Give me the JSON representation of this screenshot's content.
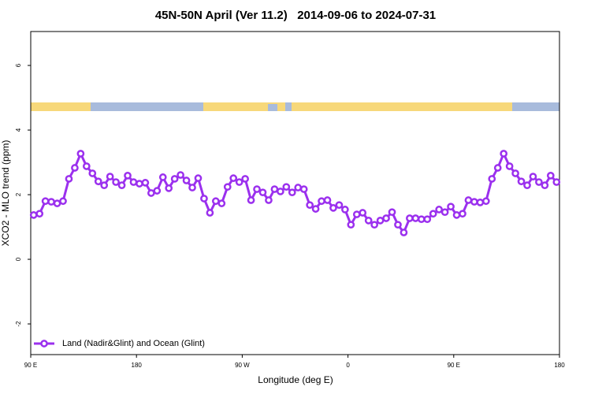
{
  "chart_data": {
    "type": "line",
    "title": "45N-50N April (Ver 11.2)   2014-09-06 to 2024-07-31",
    "x_label": "Longitude (deg E)",
    "y_label": "XCO2 - MLO trend (ppm)",
    "xlim": [
      90,
      540
    ],
    "xticks": [
      {
        "value": 90,
        "label": "90 E"
      },
      180,
      {
        "value": 270,
        "label": "90 W"
      },
      {
        "value": 360,
        "label": "0"
      },
      {
        "value": 450,
        "label": "90 E"
      },
      {
        "value": 540,
        "label": "180"
      }
    ],
    "ylim": [
      -2.95,
      7.05
    ],
    "yticks": [
      -2,
      0,
      2,
      4,
      6
    ],
    "legend": "bottom-left",
    "x": [
      92.5,
      97.5,
      102.5,
      107.5,
      112.5,
      117.5,
      122.5,
      127.5,
      132.5,
      137.5,
      142.5,
      147.5,
      152.5,
      157.5,
      162.5,
      167.5,
      172.5,
      177.5,
      182.5,
      187.5,
      192.5,
      197.5,
      202.5,
      207.5,
      212.5,
      217.5,
      222.5,
      227.5,
      232.5,
      237.5,
      242.5,
      247.5,
      252.5,
      257.5,
      262.5,
      267.5,
      272.5,
      277.5,
      282.5,
      287.5,
      292.5,
      297.5,
      302.5,
      307.5,
      312.5,
      317.5,
      322.5,
      327.5,
      332.5,
      337.5,
      342.5,
      347.5,
      352.5,
      357.5,
      362.5,
      367.5,
      372.5,
      377.5,
      382.5,
      387.5,
      392.5,
      397.5,
      402.5,
      407.5,
      412.5,
      417.5,
      422.5,
      427.5,
      432.5,
      437.5,
      442.5,
      447.5,
      452.5,
      457.5,
      462.5,
      467.5,
      472.5,
      477.5,
      482.5,
      487.5,
      492.5,
      497.5,
      502.5,
      507.5,
      512.5,
      517.5,
      522.5,
      527.5,
      532.5,
      537.5
    ],
    "series": [
      {
        "name": "Land (Nadir&Glint) and Ocean (Glint)",
        "color": "#9b30ee",
        "values": [
          1.37,
          1.41,
          1.8,
          1.78,
          1.73,
          1.8,
          2.49,
          2.83,
          3.27,
          2.88,
          2.66,
          2.41,
          2.29,
          2.56,
          2.39,
          2.29,
          2.59,
          2.39,
          2.34,
          2.37,
          2.05,
          2.12,
          2.54,
          2.2,
          2.49,
          2.61,
          2.44,
          2.22,
          2.51,
          1.88,
          1.44,
          1.8,
          1.73,
          2.24,
          2.51,
          2.39,
          2.49,
          1.83,
          2.17,
          2.07,
          1.83,
          2.17,
          2.1,
          2.24,
          2.07,
          2.22,
          2.17,
          1.68,
          1.56,
          1.8,
          1.83,
          1.59,
          1.68,
          1.54,
          1.07,
          1.39,
          1.44,
          1.2,
          1.07,
          1.2,
          1.27,
          1.46,
          1.07,
          0.83,
          1.27,
          1.27,
          1.24,
          1.24,
          1.41,
          1.54,
          1.46,
          1.63,
          1.37,
          1.41,
          1.83,
          1.78,
          1.76,
          1.8,
          2.49,
          2.83,
          3.27,
          2.88,
          2.66,
          2.41,
          2.29,
          2.56,
          2.39,
          2.29,
          2.59,
          2.39
        ]
      }
    ]
  }
}
